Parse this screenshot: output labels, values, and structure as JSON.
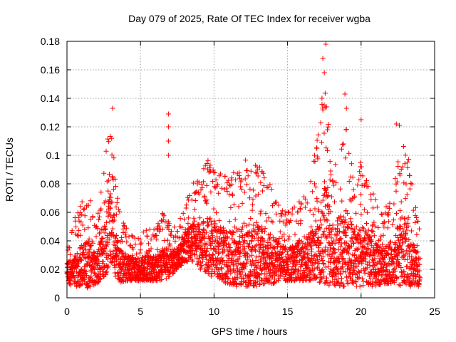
{
  "chart_data": {
    "type": "scatter",
    "title": "Day 079 of 2025, Rate Of TEC Index for receiver wgba",
    "xlabel": "GPS time / hours",
    "ylabel": "ROTI / TECUs",
    "xlim": [
      0,
      25
    ],
    "ylim": [
      0,
      0.18
    ],
    "x_ticks": [
      0,
      5,
      10,
      15,
      20,
      25
    ],
    "x_tick_labels": [
      "0",
      "5",
      "10",
      "15",
      "20",
      "25"
    ],
    "y_ticks": [
      0,
      0.02,
      0.04,
      0.06,
      0.08,
      0.1,
      0.12,
      0.14,
      0.16,
      0.18
    ],
    "y_tick_labels": [
      "0",
      "0.02",
      "0.04",
      "0.06",
      "0.08",
      "0.1",
      "0.12",
      "0.14",
      "0.16",
      "0.18"
    ],
    "grid": true,
    "marker": "+",
    "color": "#ff0000",
    "series": [
      {
        "name": "ROTI",
        "envelope": {
          "x": [
            0.0,
            0.5,
            1.0,
            1.5,
            2.0,
            2.5,
            2.8,
            3.0,
            3.3,
            3.6,
            4.0,
            4.5,
            5.0,
            5.5,
            6.0,
            6.5,
            7.0,
            7.5,
            8.0,
            8.5,
            9.0,
            9.5,
            9.8,
            10.2,
            10.8,
            11.5,
            12.0,
            12.5,
            13.0,
            13.5,
            14.0,
            14.5,
            15.0,
            15.5,
            16.0,
            16.5,
            17.0,
            17.3,
            17.6,
            18.0,
            18.5,
            19.0,
            19.5,
            20.0,
            20.5,
            21.0,
            21.5,
            22.0,
            22.4,
            22.8,
            23.2,
            23.6,
            24.0
          ],
          "high": [
            0.038,
            0.055,
            0.07,
            0.075,
            0.05,
            0.09,
            0.115,
            0.13,
            0.08,
            0.06,
            0.05,
            0.045,
            0.045,
            0.05,
            0.048,
            0.06,
            0.055,
            0.05,
            0.07,
            0.08,
            0.085,
            0.095,
            0.1,
            0.09,
            0.085,
            0.09,
            0.1,
            0.09,
            0.095,
            0.085,
            0.08,
            0.065,
            0.06,
            0.065,
            0.07,
            0.08,
            0.11,
            0.14,
            0.16,
            0.09,
            0.11,
            0.12,
            0.09,
            0.1,
            0.08,
            0.07,
            0.06,
            0.07,
            0.09,
            0.11,
            0.1,
            0.07,
            0.055
          ],
          "low": [
            0.01,
            0.008,
            0.007,
            0.007,
            0.01,
            0.012,
            0.02,
            0.025,
            0.015,
            0.01,
            0.012,
            0.012,
            0.012,
            0.012,
            0.012,
            0.012,
            0.015,
            0.02,
            0.025,
            0.025,
            0.02,
            0.018,
            0.015,
            0.015,
            0.01,
            0.008,
            0.008,
            0.008,
            0.008,
            0.01,
            0.01,
            0.012,
            0.012,
            0.012,
            0.012,
            0.012,
            0.012,
            0.01,
            0.01,
            0.008,
            0.008,
            0.008,
            0.008,
            0.008,
            0.008,
            0.008,
            0.01,
            0.01,
            0.01,
            0.008,
            0.008,
            0.008,
            0.008
          ],
          "density": 1100
        },
        "notable_points": [
          {
            "x": 17.6,
            "y": 0.178
          },
          {
            "x": 17.4,
            "y": 0.168
          },
          {
            "x": 17.5,
            "y": 0.158
          },
          {
            "x": 18.9,
            "y": 0.143
          },
          {
            "x": 19.0,
            "y": 0.133
          },
          {
            "x": 6.9,
            "y": 0.129
          },
          {
            "x": 6.9,
            "y": 0.12
          },
          {
            "x": 6.9,
            "y": 0.11
          },
          {
            "x": 6.9,
            "y": 0.1
          },
          {
            "x": 3.1,
            "y": 0.133
          },
          {
            "x": 20.0,
            "y": 0.125
          },
          {
            "x": 22.4,
            "y": 0.122
          },
          {
            "x": 22.6,
            "y": 0.121
          }
        ]
      }
    ]
  }
}
